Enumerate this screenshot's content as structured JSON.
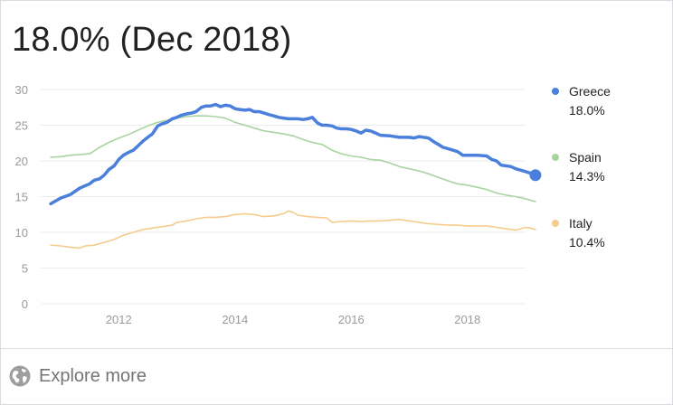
{
  "headline": "18.0% (Dec 2018)",
  "footer": {
    "explore_label": "Explore more",
    "icon": "globe-icon"
  },
  "chart_data": {
    "type": "line",
    "title": "",
    "xlabel": "",
    "ylabel": "",
    "ylim": [
      0,
      30
    ],
    "yticks": [
      0,
      5,
      10,
      15,
      20,
      25,
      30
    ],
    "xlim": [
      2010.75,
      2019.0
    ],
    "xticks": [
      {
        "value": 2012,
        "label": "2012"
      },
      {
        "value": 2014,
        "label": "2014"
      },
      {
        "value": 2016,
        "label": "2016"
      },
      {
        "value": 2018,
        "label": "2018"
      }
    ],
    "grid": true,
    "legend_placement": "right",
    "series": [
      {
        "name": "Greece",
        "value_label": "18.0%",
        "color": "#4a7fdc",
        "emphasis": true,
        "points": [
          [
            2010.83,
            14.0
          ],
          [
            2011.0,
            14.8
          ],
          [
            2011.17,
            15.3
          ],
          [
            2011.33,
            16.2
          ],
          [
            2011.5,
            16.8
          ],
          [
            2011.58,
            17.3
          ],
          [
            2011.67,
            17.5
          ],
          [
            2011.75,
            18.0
          ],
          [
            2011.83,
            18.8
          ],
          [
            2011.92,
            19.3
          ],
          [
            2012.0,
            20.2
          ],
          [
            2012.08,
            20.8
          ],
          [
            2012.17,
            21.2
          ],
          [
            2012.25,
            21.5
          ],
          [
            2012.33,
            22.1
          ],
          [
            2012.42,
            22.8
          ],
          [
            2012.5,
            23.3
          ],
          [
            2012.58,
            23.8
          ],
          [
            2012.67,
            24.9
          ],
          [
            2012.75,
            25.2
          ],
          [
            2012.83,
            25.4
          ],
          [
            2012.92,
            25.9
          ],
          [
            2013.0,
            26.1
          ],
          [
            2013.08,
            26.4
          ],
          [
            2013.17,
            26.6
          ],
          [
            2013.25,
            26.7
          ],
          [
            2013.33,
            26.9
          ],
          [
            2013.42,
            27.5
          ],
          [
            2013.5,
            27.7
          ],
          [
            2013.58,
            27.7
          ],
          [
            2013.67,
            27.9
          ],
          [
            2013.75,
            27.6
          ],
          [
            2013.83,
            27.8
          ],
          [
            2013.92,
            27.7
          ],
          [
            2014.0,
            27.3
          ],
          [
            2014.08,
            27.2
          ],
          [
            2014.17,
            27.1
          ],
          [
            2014.25,
            27.2
          ],
          [
            2014.33,
            26.9
          ],
          [
            2014.42,
            26.9
          ],
          [
            2014.5,
            26.7
          ],
          [
            2014.58,
            26.5
          ],
          [
            2014.67,
            26.3
          ],
          [
            2014.75,
            26.1
          ],
          [
            2014.83,
            26.0
          ],
          [
            2014.92,
            25.9
          ],
          [
            2015.0,
            25.9
          ],
          [
            2015.08,
            25.9
          ],
          [
            2015.17,
            25.8
          ],
          [
            2015.25,
            25.9
          ],
          [
            2015.33,
            26.1
          ],
          [
            2015.42,
            25.3
          ],
          [
            2015.5,
            25.0
          ],
          [
            2015.58,
            25.0
          ],
          [
            2015.67,
            24.9
          ],
          [
            2015.75,
            24.6
          ],
          [
            2015.83,
            24.5
          ],
          [
            2015.92,
            24.5
          ],
          [
            2016.0,
            24.4
          ],
          [
            2016.08,
            24.2
          ],
          [
            2016.17,
            23.9
          ],
          [
            2016.25,
            24.3
          ],
          [
            2016.33,
            24.2
          ],
          [
            2016.42,
            23.9
          ],
          [
            2016.5,
            23.6
          ],
          [
            2016.67,
            23.5
          ],
          [
            2016.83,
            23.3
          ],
          [
            2017.0,
            23.3
          ],
          [
            2017.08,
            23.2
          ],
          [
            2017.17,
            23.4
          ],
          [
            2017.33,
            23.2
          ],
          [
            2017.42,
            22.7
          ],
          [
            2017.5,
            22.3
          ],
          [
            2017.58,
            21.9
          ],
          [
            2017.67,
            21.7
          ],
          [
            2017.83,
            21.3
          ],
          [
            2017.92,
            20.8
          ],
          [
            2018.0,
            20.8
          ],
          [
            2018.17,
            20.8
          ],
          [
            2018.33,
            20.7
          ],
          [
            2018.42,
            20.2
          ],
          [
            2018.5,
            20.0
          ],
          [
            2018.58,
            19.4
          ],
          [
            2018.67,
            19.3
          ],
          [
            2018.75,
            19.2
          ],
          [
            2018.83,
            18.9
          ],
          [
            2018.92,
            18.7
          ],
          [
            2019.0,
            18.5
          ],
          [
            2019.08,
            18.3
          ],
          [
            2019.17,
            18.0
          ]
        ]
      },
      {
        "name": "Spain",
        "value_label": "14.3%",
        "color": "#a8d4a0",
        "emphasis": false,
        "points": [
          [
            2010.83,
            20.5
          ],
          [
            2011.0,
            20.6
          ],
          [
            2011.17,
            20.8
          ],
          [
            2011.33,
            20.9
          ],
          [
            2011.5,
            21.0
          ],
          [
            2011.67,
            21.9
          ],
          [
            2011.83,
            22.6
          ],
          [
            2012.0,
            23.2
          ],
          [
            2012.17,
            23.7
          ],
          [
            2012.33,
            24.3
          ],
          [
            2012.5,
            24.9
          ],
          [
            2012.67,
            25.4
          ],
          [
            2012.83,
            25.7
          ],
          [
            2013.0,
            26.0
          ],
          [
            2013.17,
            26.2
          ],
          [
            2013.33,
            26.3
          ],
          [
            2013.5,
            26.3
          ],
          [
            2013.67,
            26.2
          ],
          [
            2013.83,
            26.0
          ],
          [
            2014.0,
            25.4
          ],
          [
            2014.17,
            25.0
          ],
          [
            2014.33,
            24.6
          ],
          [
            2014.5,
            24.2
          ],
          [
            2014.67,
            24.0
          ],
          [
            2014.83,
            23.8
          ],
          [
            2015.0,
            23.5
          ],
          [
            2015.17,
            23.0
          ],
          [
            2015.33,
            22.6
          ],
          [
            2015.5,
            22.3
          ],
          [
            2015.67,
            21.5
          ],
          [
            2015.83,
            21.0
          ],
          [
            2016.0,
            20.7
          ],
          [
            2016.17,
            20.5
          ],
          [
            2016.33,
            20.2
          ],
          [
            2016.5,
            20.1
          ],
          [
            2016.67,
            19.7
          ],
          [
            2016.83,
            19.2
          ],
          [
            2017.0,
            18.9
          ],
          [
            2017.17,
            18.6
          ],
          [
            2017.33,
            18.2
          ],
          [
            2017.5,
            17.7
          ],
          [
            2017.67,
            17.2
          ],
          [
            2017.83,
            16.8
          ],
          [
            2018.0,
            16.6
          ],
          [
            2018.17,
            16.3
          ],
          [
            2018.33,
            16.0
          ],
          [
            2018.5,
            15.5
          ],
          [
            2018.67,
            15.2
          ],
          [
            2018.83,
            15.0
          ],
          [
            2019.0,
            14.7
          ],
          [
            2019.17,
            14.3
          ]
        ]
      },
      {
        "name": "Italy",
        "value_label": "10.4%",
        "color": "#f6cc8c",
        "emphasis": false,
        "points": [
          [
            2010.83,
            8.2
          ],
          [
            2011.0,
            8.1
          ],
          [
            2011.17,
            7.9
          ],
          [
            2011.33,
            7.8
          ],
          [
            2011.42,
            8.1
          ],
          [
            2011.58,
            8.2
          ],
          [
            2011.75,
            8.6
          ],
          [
            2011.92,
            9.0
          ],
          [
            2012.08,
            9.6
          ],
          [
            2012.25,
            10.0
          ],
          [
            2012.42,
            10.4
          ],
          [
            2012.58,
            10.6
          ],
          [
            2012.75,
            10.8
          ],
          [
            2012.92,
            11.0
          ],
          [
            2013.0,
            11.4
          ],
          [
            2013.17,
            11.6
          ],
          [
            2013.33,
            11.9
          ],
          [
            2013.5,
            12.1
          ],
          [
            2013.67,
            12.1
          ],
          [
            2013.83,
            12.2
          ],
          [
            2014.0,
            12.5
          ],
          [
            2014.17,
            12.6
          ],
          [
            2014.33,
            12.5
          ],
          [
            2014.5,
            12.2
          ],
          [
            2014.67,
            12.3
          ],
          [
            2014.83,
            12.6
          ],
          [
            2014.92,
            13.0
          ],
          [
            2015.0,
            12.8
          ],
          [
            2015.08,
            12.4
          ],
          [
            2015.25,
            12.2
          ],
          [
            2015.42,
            12.1
          ],
          [
            2015.58,
            12.0
          ],
          [
            2015.67,
            11.4
          ],
          [
            2015.83,
            11.5
          ],
          [
            2016.0,
            11.6
          ],
          [
            2016.17,
            11.5
          ],
          [
            2016.33,
            11.6
          ],
          [
            2016.5,
            11.6
          ],
          [
            2016.67,
            11.7
          ],
          [
            2016.83,
            11.8
          ],
          [
            2017.0,
            11.6
          ],
          [
            2017.17,
            11.4
          ],
          [
            2017.33,
            11.2
          ],
          [
            2017.5,
            11.1
          ],
          [
            2017.67,
            11.0
          ],
          [
            2017.83,
            11.0
          ],
          [
            2018.0,
            10.9
          ],
          [
            2018.17,
            10.9
          ],
          [
            2018.33,
            10.9
          ],
          [
            2018.5,
            10.7
          ],
          [
            2018.67,
            10.5
          ],
          [
            2018.83,
            10.3
          ],
          [
            2019.0,
            10.7
          ],
          [
            2019.08,
            10.6
          ],
          [
            2019.17,
            10.4
          ]
        ]
      }
    ]
  }
}
